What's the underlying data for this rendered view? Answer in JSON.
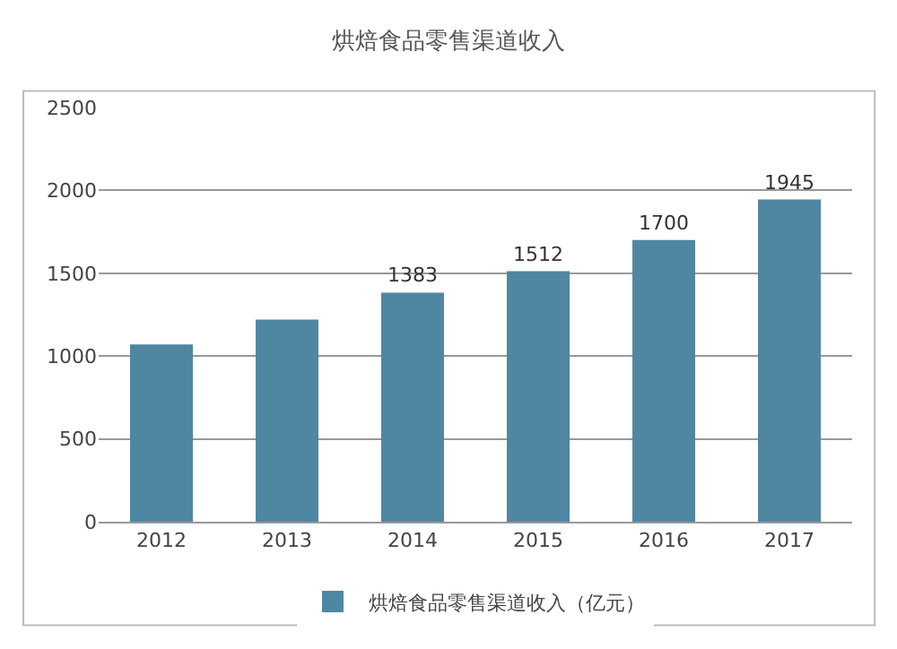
{
  "chart_data": {
    "type": "bar",
    "title": "烘焙食品零售渠道收入",
    "categories": [
      "2012",
      "2013",
      "2014",
      "2015",
      "2016",
      "2017"
    ],
    "series": [
      {
        "name": "烘焙食品零售渠道收入（亿元）",
        "color": "#4f87a3",
        "values": [
          1070,
          1220,
          1383,
          1512,
          1700,
          1945
        ],
        "value_labels": [
          null,
          null,
          "1383",
          "1512",
          "1700",
          "1945"
        ]
      }
    ],
    "ylim": [
      0,
      2500
    ],
    "yticks": [
      0,
      500,
      1000,
      1500,
      2000,
      2500
    ],
    "grid": "y",
    "legend": "bottom"
  }
}
